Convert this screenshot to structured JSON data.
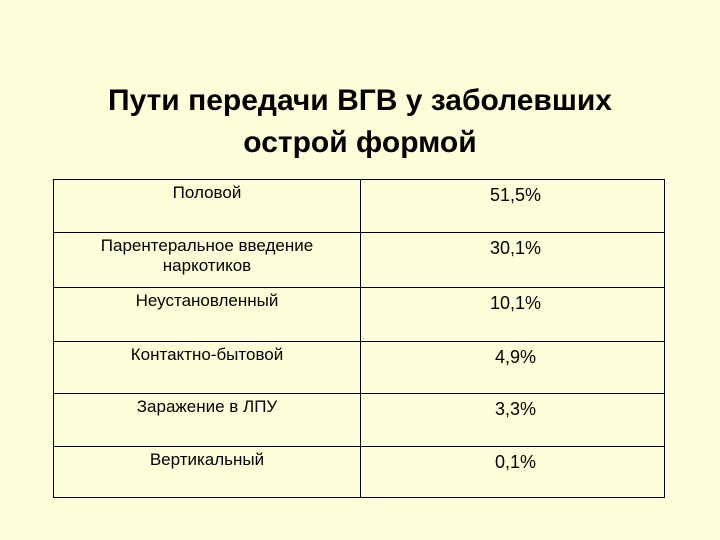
{
  "slide": {
    "title_line1": "Пути передачи ВГВ у заболевших",
    "title_line2": "острой формой"
  },
  "table": {
    "rows": [
      {
        "label": "Половой",
        "value": "51,5%"
      },
      {
        "label": "Парентеральное введение наркотиков",
        "value": "30,1%"
      },
      {
        "label": "Неустановленный",
        "value": "10,1%"
      },
      {
        "label": "Контактно-бытовой",
        "value": "4,9%"
      },
      {
        "label": "Заражение в ЛПУ",
        "value": "3,3%"
      },
      {
        "label": "Вертикальный",
        "value": "0,1%"
      }
    ]
  },
  "colors": {
    "background": "#fefed8",
    "text": "#000000",
    "border": "#000000"
  }
}
